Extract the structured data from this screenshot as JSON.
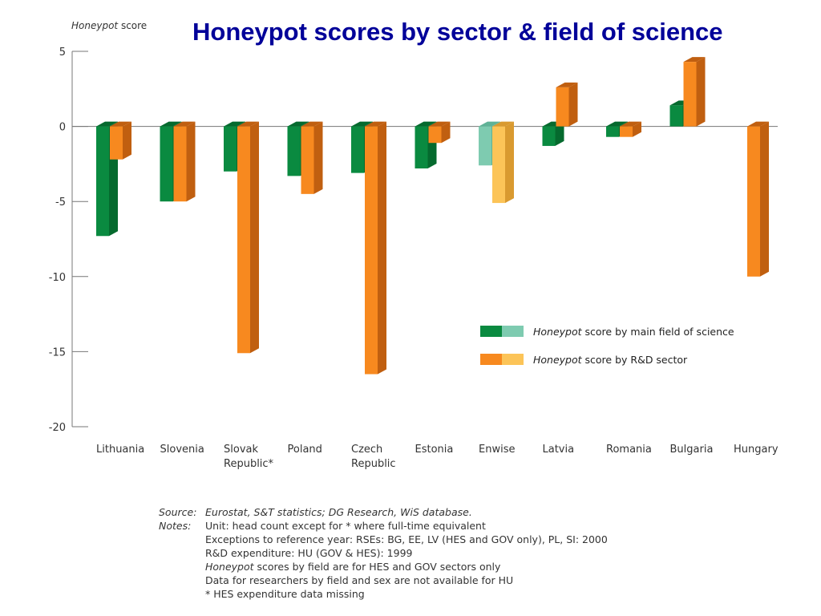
{
  "slide": {
    "title": "Honeypot scores by sector & field of science"
  },
  "chart_data": {
    "type": "bar",
    "title": "",
    "ylabel_italic": "Honeypot",
    "ylabel_rest": " score",
    "ylim": [
      -20,
      5
    ],
    "yticks": [
      "5",
      "0",
      "-5",
      "-10",
      "-15",
      "-20"
    ],
    "ytick_values": [
      5,
      0,
      -5,
      -10,
      -15,
      -20
    ],
    "grid": false,
    "categories": [
      "Lithuania",
      "Slovenia",
      "Slovak\nRepublic*",
      "Poland",
      "Czech\nRepublic",
      "Estonia",
      "Enwise",
      "Latvia",
      "Romania",
      "Bulgaria",
      "Hungary"
    ],
    "series": [
      {
        "name": "Honeypot score by main field of science",
        "values": [
          -7.3,
          -5.0,
          -3.0,
          -3.3,
          -3.1,
          -2.8,
          -2.6,
          -1.3,
          -0.7,
          1.4,
          null
        ],
        "color": "#0a8a40",
        "color_side": "#056a2e",
        "color_enwise": "#7ecbb0",
        "color_enwise_side": "#5fb296"
      },
      {
        "name": "Honeypot score by R&D sector",
        "values": [
          -2.2,
          -5.0,
          -15.1,
          -4.5,
          -16.5,
          -1.1,
          -5.1,
          2.6,
          -0.7,
          4.3,
          -10.0
        ],
        "color": "#f7891f",
        "color_side": "#c05f10",
        "color_enwise": "#fcc458",
        "color_enwise_side": "#d99a30"
      }
    ],
    "legend": {
      "placement": "lower-right",
      "entries": [
        {
          "italic": "Honeypot",
          "rest": " score by main field of science"
        },
        {
          "italic": "Honeypot",
          "rest": " score by R&D sector"
        }
      ]
    }
  },
  "notes": {
    "source_key": "Source:",
    "source_text": "Eurostat, S&T statistics; DG Research, WiS database.",
    "notes_key": "Notes:",
    "line1": "Unit: head count except for * where full-time equivalent",
    "line2": "Exceptions to reference year: RSEs: BG, EE, LV (HES and GOV only), PL, SI: 2000",
    "line3": "R&D expenditure: HU (GOV & HES): 1999",
    "line4_italic": "Honeypot",
    "line4_rest": " scores by field are for HES and GOV sectors only",
    "line5": "Data for researchers by field and sex are not available for HU",
    "line6": "* HES expenditure data missing"
  }
}
